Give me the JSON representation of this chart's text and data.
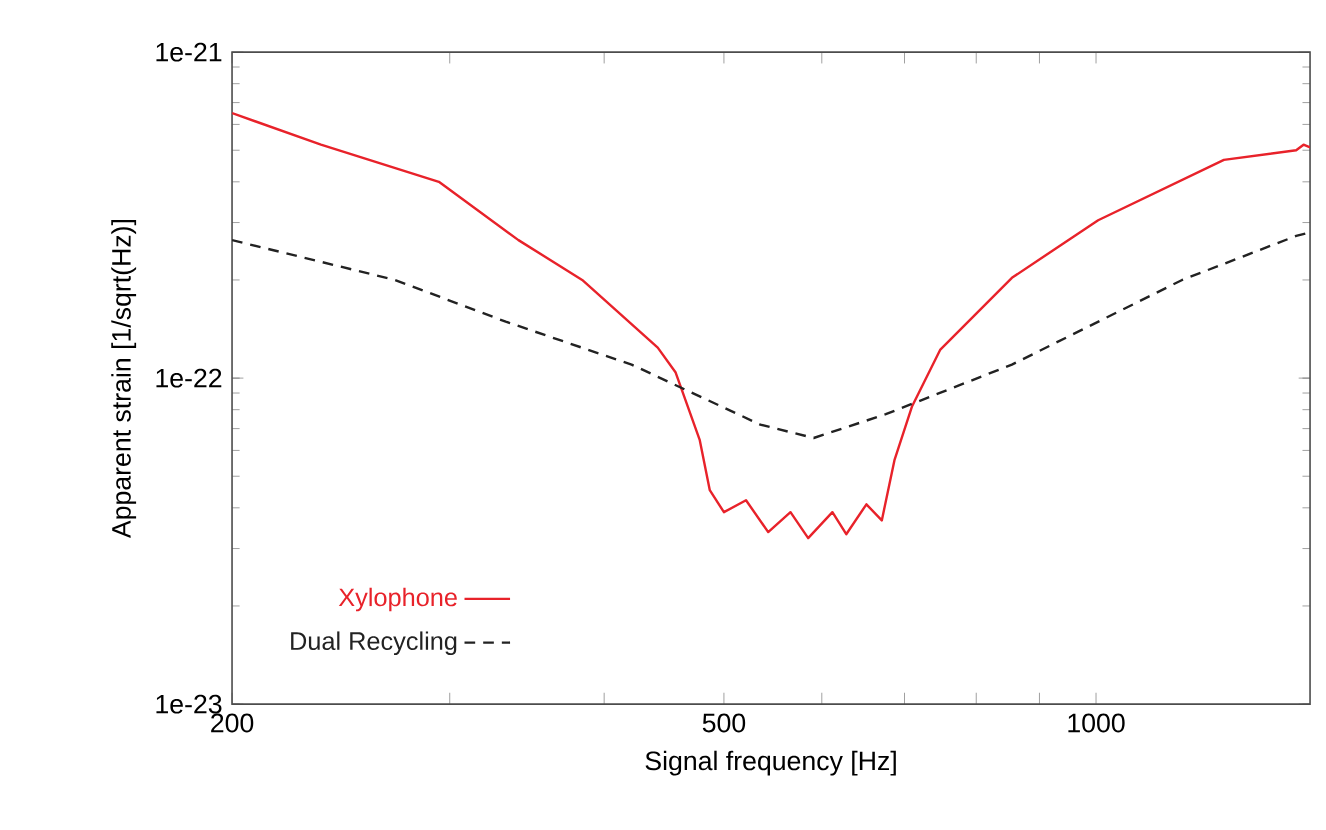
{
  "chart_data": {
    "type": "line",
    "xlabel": "Signal frequency [Hz]",
    "ylabel": "Apparent strain [1/sqrt(Hz)]",
    "log": "xy",
    "grid": false,
    "legend": "bottom left",
    "marker": "none",
    "xlim": [
      200,
      1490
    ],
    "ylim": [
      1e-23,
      1e-21
    ],
    "xticks": [
      200,
      {
        "value": 300,
        "label": null
      },
      {
        "value": 400,
        "label": null
      },
      500,
      {
        "value": 600,
        "label": null
      },
      {
        "value": 700,
        "label": null
      },
      {
        "value": 800,
        "label": null
      },
      {
        "value": 900,
        "label": null
      },
      1000
    ],
    "yticks": [
      {
        "value": 1e-23,
        "label": "1e-23"
      },
      {
        "value": 1e-22,
        "label": "1e-22"
      },
      {
        "value": 1e-21,
        "label": "1e-21"
      }
    ],
    "series": [
      {
        "name": "Xylophone",
        "color": "#e8222a",
        "line_style": "solid",
        "x": [
          200,
          236,
          294,
          341,
          384,
          442,
          457,
          478,
          487,
          500,
          521,
          543,
          566,
          585,
          612,
          628,
          652,
          671,
          687,
          710,
          748,
          855,
          1004,
          1269,
          1452,
          1472,
          1490
        ],
        "values": [
          6.5e-22,
          5.2e-22,
          4e-22,
          2.65e-22,
          2e-22,
          1.24e-22,
          1.04e-22,
          6.45e-23,
          4.53e-23,
          3.88e-23,
          4.22e-23,
          3.37e-23,
          3.88e-23,
          3.23e-23,
          3.88e-23,
          3.32e-23,
          4.1e-23,
          3.66e-23,
          5.6e-23,
          8.2e-23,
          1.22e-22,
          2.03e-22,
          3.05e-22,
          4.67e-22,
          5e-22,
          5.2e-22,
          5.1e-22
        ]
      },
      {
        "name": "Dual Recycling",
        "color": "#222222",
        "line_style": "dashed",
        "x": [
          200,
          271,
          333,
          421,
          535,
          591,
          676,
          855,
          1174,
          1452,
          1490
        ],
        "values": [
          2.65e-22,
          2e-22,
          1.49e-22,
          1.1e-22,
          7.2e-23,
          6.55e-23,
          7.75e-23,
          1.1e-22,
          2e-22,
          2.73e-22,
          2.8e-22
        ]
      }
    ]
  }
}
